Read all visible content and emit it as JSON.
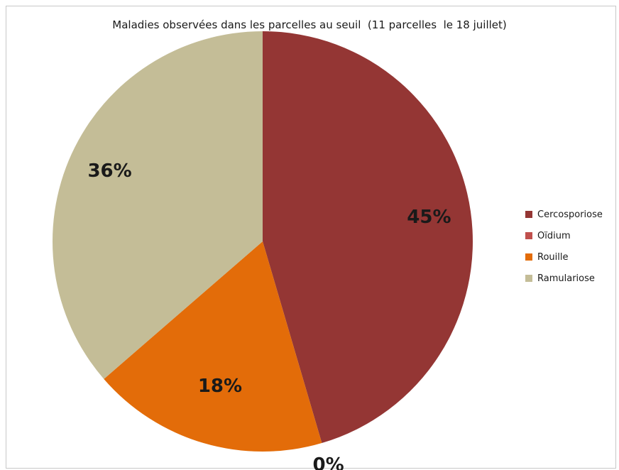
{
  "chart_data": {
    "type": "pie",
    "title": "Maladies observées dans les parcelles au seuil  (11 parcelles  le 18 juillet)",
    "slices": [
      {
        "name": "Cercosporiose",
        "value": 45,
        "label": "45%",
        "color": "#943634"
      },
      {
        "name": "Oïdium",
        "value": 0,
        "label": "0%",
        "color": "#c0504d"
      },
      {
        "name": "Rouille",
        "value": 18,
        "label": "18%",
        "color": "#e36c09"
      },
      {
        "name": "Ramulariose",
        "value": 36,
        "label": "36%",
        "color": "#c4bd97"
      }
    ],
    "legend_position": "right"
  }
}
